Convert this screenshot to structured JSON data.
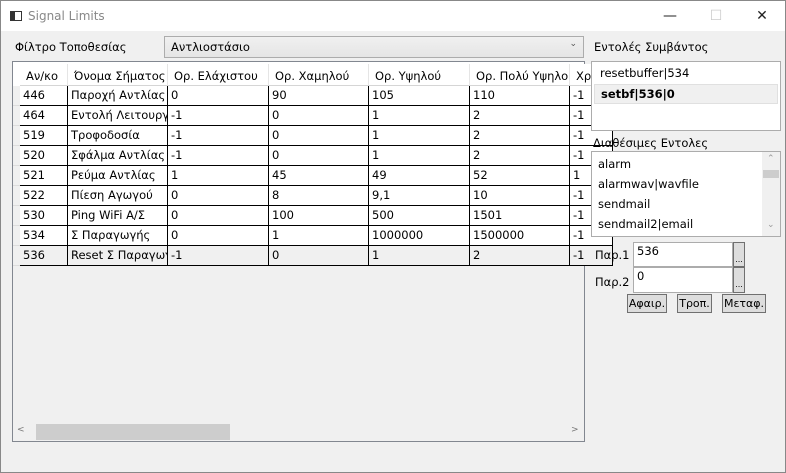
{
  "window": {
    "title": "Signal Limits",
    "controls": [
      "—",
      "☐",
      "✕"
    ]
  },
  "filter": {
    "label": "Φίλτρο Τοποθεσίας",
    "selected": "Αντλιοστάσιο"
  },
  "grid": {
    "columns": [
      "Αν/κο",
      "Όνομα Σήματος",
      "Ορ. Ελάχιστου",
      "Ορ. Χαμηλού",
      "Ορ. Υψηλού",
      "Ορ. Πολύ Υψηλο",
      "Χρ"
    ],
    "rows": [
      [
        "446",
        "Παροχή Αντλίας",
        "0",
        "90",
        "105",
        "110",
        "-1"
      ],
      [
        "464",
        "Εντολή Λειτουργί",
        "-1",
        "0",
        "1",
        "2",
        "-1"
      ],
      [
        "519",
        "Τροφοδοσία",
        "-1",
        "0",
        "1",
        "2",
        "-1"
      ],
      [
        "520",
        "Σφάλμα Αντλίας",
        "-1",
        "0",
        "1",
        "2",
        "-1"
      ],
      [
        "521",
        "Ρεύμα Αντλίας",
        "1",
        "45",
        "49",
        "52",
        "1"
      ],
      [
        "522",
        "Πίεση Αγωγού",
        "0",
        "8",
        "9,1",
        "10",
        "-1"
      ],
      [
        "530",
        "Ping WiFi A/Σ",
        "0",
        "100",
        "500",
        "1501",
        "-1"
      ],
      [
        "534",
        "Σ Παραγωγής",
        "0",
        "1",
        "1000000",
        "1500000",
        "-1"
      ],
      [
        "536",
        "Reset Σ Παραγωγ",
        "-1",
        "0",
        "1",
        "2",
        "-1"
      ]
    ],
    "selected_row": 8
  },
  "event_commands": {
    "label": "Εντολές Συμβάντος",
    "items": [
      "resetbuffer|534",
      "setbf|536|0"
    ],
    "selected": 1
  },
  "available_commands": {
    "label": "Διαθέσιμες Εντολες",
    "items": [
      "alarm",
      "alarmwav|wavfile",
      "sendmail",
      "sendmail2|email"
    ]
  },
  "params": {
    "p1_label": "Παρ.1",
    "p1_value": "536",
    "p2_label": "Παρ.2",
    "p2_value": "0",
    "browse": "..."
  },
  "buttons": {
    "remove": "Αφαιρ.",
    "modify": "Τροπ.",
    "move": "Μεταφ."
  }
}
